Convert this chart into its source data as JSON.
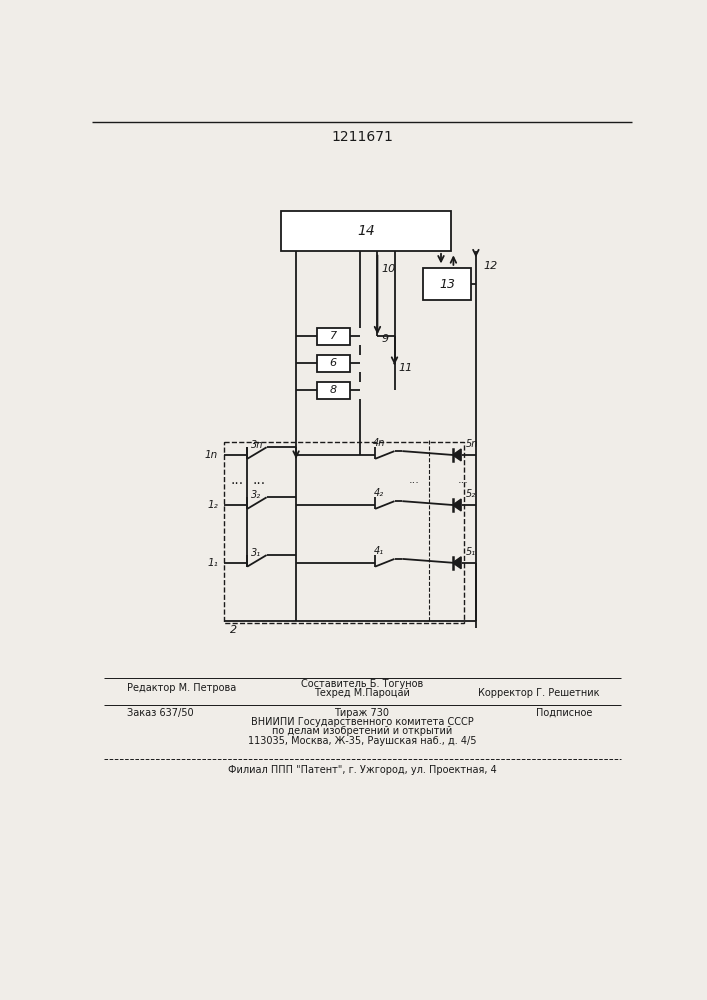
{
  "title": "1211671",
  "bg_color": "#f0ede8",
  "lc": "#1a1a1a",
  "lw": 1.3,
  "footer": {
    "line1_left": "Редактор М. Петрова",
    "line1_center_top": "Составитель Б. Тогунов",
    "line1_center_bot": "Техред М.Пароцай",
    "line1_right": "Корректор Г. Решетник",
    "line2_left": "Заказ 637/50",
    "line2_center": "Тираж 730",
    "line2_right": "Подписное",
    "line3": "ВНИИПИ Государственного комитета СССР",
    "line4": "по делам изобретений и открытий",
    "line5": "113035, Москва, Ж-35, Раушская наб., д. 4/5",
    "line6": "Филиал ППП \"Патент\", г. Ужгород, ул. Проектная, 4"
  }
}
